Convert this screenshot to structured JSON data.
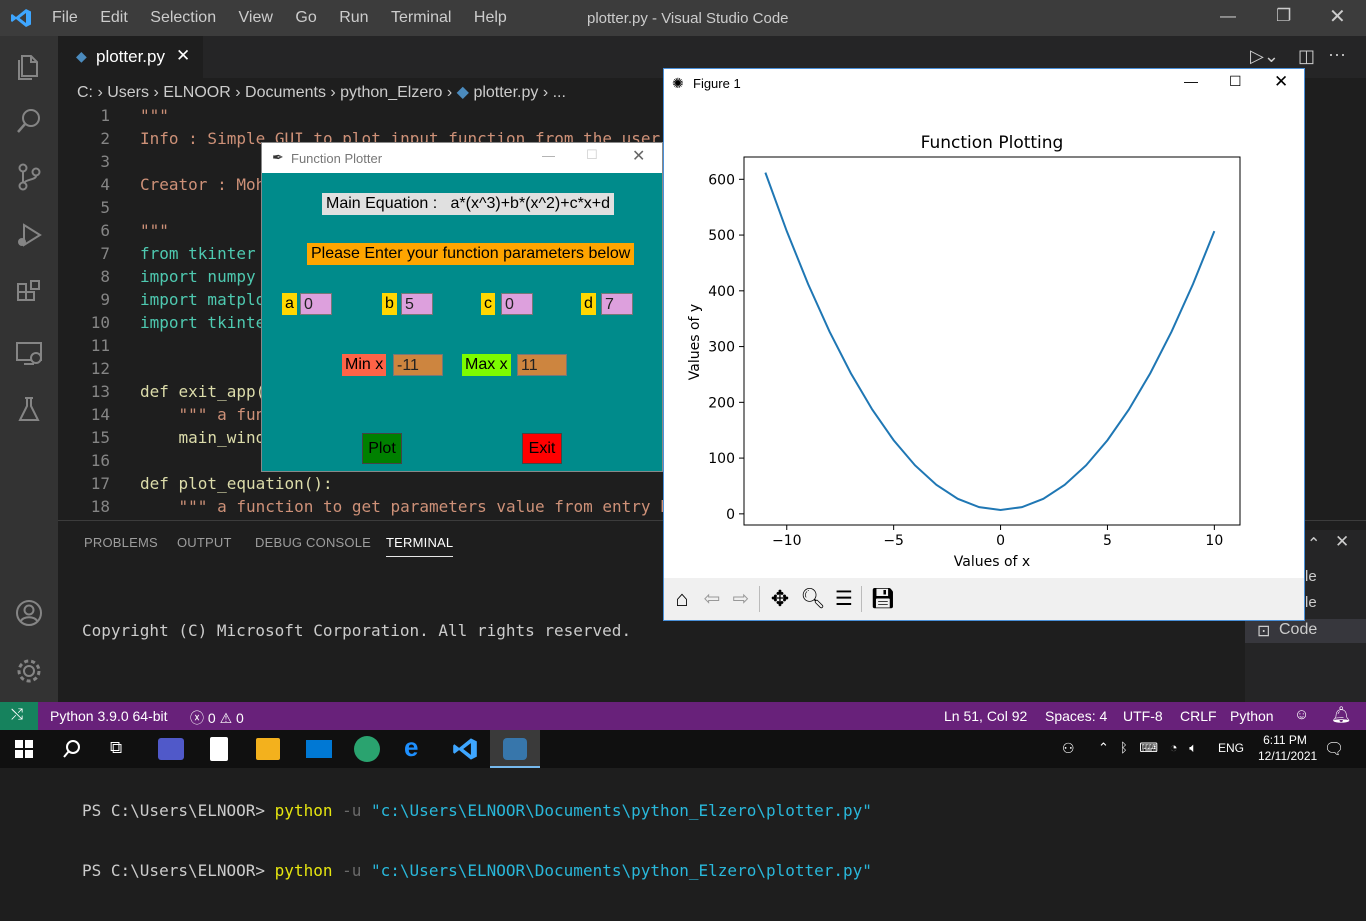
{
  "window": {
    "title": "plotter.py - Visual Studio Code",
    "menu": [
      "File",
      "Edit",
      "Selection",
      "View",
      "Go",
      "Run",
      "Terminal",
      "Help"
    ]
  },
  "tab": {
    "label": "plotter.py"
  },
  "breadcrumb": [
    "C:",
    "Users",
    "ELNOOR",
    "Documents",
    "python_Elzero",
    "plotter.py",
    "..."
  ],
  "editor": {
    "lines": [
      {
        "n": "1",
        "text": "\"\"\""
      },
      {
        "n": "2",
        "text": "Info : Simple GUI to plot input function from the user"
      },
      {
        "n": "3",
        "text": ""
      },
      {
        "n": "4",
        "text": "Creator : Moha"
      },
      {
        "n": "5",
        "text": ""
      },
      {
        "n": "6",
        "text": "\"\"\""
      },
      {
        "n": "7",
        "text": "from tkinter i"
      },
      {
        "n": "8",
        "text": "import numpy a"
      },
      {
        "n": "9",
        "text": "import matplot"
      },
      {
        "n": "10",
        "text": "import tkinter"
      },
      {
        "n": "11",
        "text": ""
      },
      {
        "n": "12",
        "text": ""
      },
      {
        "n": "13",
        "text": "def exit_app("
      },
      {
        "n": "14",
        "text": "    \"\"\" a func"
      },
      {
        "n": "15",
        "text": "    main_windo"
      },
      {
        "n": "16",
        "text": ""
      },
      {
        "n": "17",
        "text": "def plot_equation():"
      },
      {
        "n": "18",
        "text": "    \"\"\" a function to get parameters value from entry box"
      }
    ]
  },
  "panel": {
    "tabs": [
      "PROBLEMS",
      "OUTPUT",
      "DEBUG CONSOLE",
      "TERMINAL"
    ],
    "active_tab": "TERMINAL",
    "copyright": "Copyright (C) Microsoft Corporation. All rights reserved.",
    "prompt": "PS C:\\Users\\ELNOOR>",
    "cmd": "python",
    "flag": "-u",
    "path": "\"c:\\Users\\ELNOOR\\Documents\\python_Elzero\\plotter.py\"",
    "side_items": [
      "le",
      "le",
      "Code"
    ]
  },
  "status": {
    "python": "Python 3.9.0 64-bit",
    "errors": "0",
    "warnings": "0",
    "position": "Ln 51, Col 92",
    "spaces": "Spaces: 4",
    "encoding": "UTF-8",
    "eol": "CRLF",
    "language": "Python"
  },
  "taskbar": {
    "lang": "ENG",
    "time": "6:11 PM",
    "date": "12/11/2021"
  },
  "plotter": {
    "title": "Function Plotter",
    "equation": "Main Equation :   a*(x^3)+b*(x^2)+c*x+d",
    "prompt": "Please Enter your function parameters below",
    "params": [
      {
        "label": "a",
        "value": "0"
      },
      {
        "label": "b",
        "value": "5"
      },
      {
        "label": "c",
        "value": "0"
      },
      {
        "label": "d",
        "value": "7"
      }
    ],
    "min_label": "Min x",
    "min_value": "-11",
    "max_label": "Max x",
    "max_value": "11",
    "plot_label": "Plot",
    "exit_label": "Exit",
    "colors": {
      "bg": "#008b8b",
      "param_label": "#ffd700",
      "param_input": "#dda0dd",
      "min_label": "#ff6347",
      "max_label": "#7cfc00",
      "range_input": "#cd853f",
      "plot": "#008000",
      "exit": "#ff0000",
      "prompt_bg": "#ffa500"
    }
  },
  "figure": {
    "window_title": "Figure 1",
    "icons": [
      "home-icon",
      "back-icon",
      "forward-icon",
      "pan-icon",
      "zoom-icon",
      "configure-icon",
      "save-icon"
    ]
  },
  "chart_data": {
    "type": "line",
    "title": "Function Plotting",
    "xlabel": "Values of x",
    "ylabel": "Values of y",
    "xlim": [
      -12,
      11.2
    ],
    "ylim": [
      -20,
      640
    ],
    "xticks": [
      -10,
      -5,
      0,
      5,
      10
    ],
    "yticks": [
      0,
      100,
      200,
      300,
      400,
      500,
      600
    ],
    "xtick_labels": [
      "−10",
      "−5",
      "0",
      "5",
      "10"
    ],
    "ytick_labels": [
      "0",
      "100",
      "200",
      "300",
      "400",
      "500",
      "600"
    ],
    "series": [
      {
        "color": "#1f77b4",
        "x": [
          -11,
          -10,
          -9,
          -8,
          -7,
          -6,
          -5,
          -4,
          -3,
          -2,
          -1,
          0,
          1,
          2,
          3,
          4,
          5,
          6,
          7,
          8,
          9,
          10
        ],
        "y": [
          612,
          507,
          412,
          327,
          252,
          187,
          132,
          87,
          52,
          27,
          12,
          7,
          12,
          27,
          52,
          87,
          132,
          187,
          252,
          327,
          412,
          507
        ]
      }
    ]
  }
}
